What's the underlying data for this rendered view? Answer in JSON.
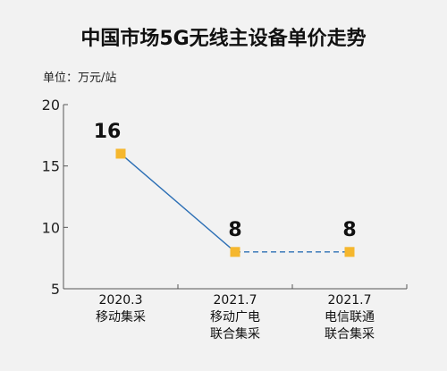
{
  "chart_data": {
    "type": "line",
    "title": "中国市场5G无线主设备单价走势",
    "unit_label": "单位：万元/站",
    "ylim": [
      5,
      20
    ],
    "yticks": [
      "5",
      "10",
      "15",
      "20"
    ],
    "categories": [
      [
        "2020.3",
        "移动集采"
      ],
      [
        "2021.7",
        "移动广电",
        "联合集采"
      ],
      [
        "2021.7",
        "电信联通",
        "联合集采"
      ]
    ],
    "values": [
      16,
      8,
      8
    ],
    "data_labels": [
      "16",
      "8",
      "8"
    ],
    "line_styles": [
      "solid",
      "dashed"
    ],
    "colors": {
      "line": "#2c6fb5",
      "marker": "#f5b72e",
      "axis": "#555555",
      "background": "#f2f2f2"
    }
  }
}
